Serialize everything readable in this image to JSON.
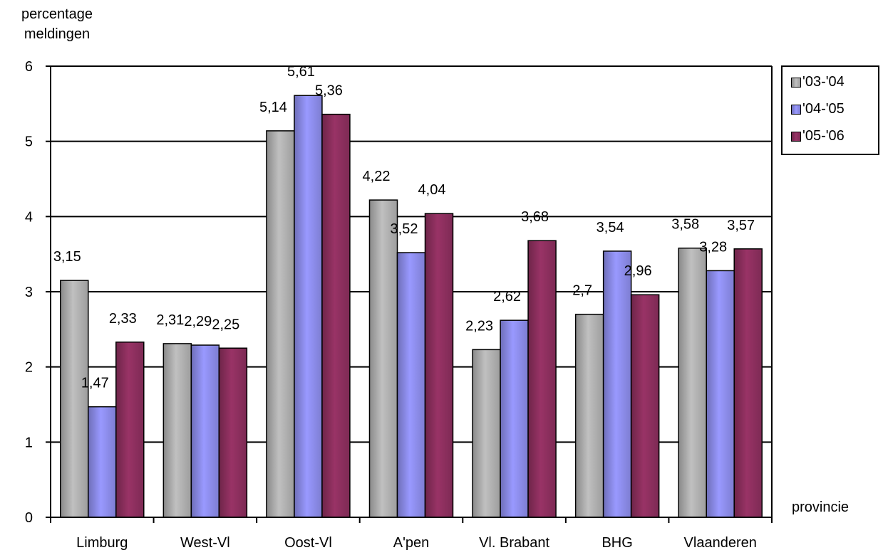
{
  "chart_data": {
    "type": "bar",
    "title": "",
    "ylabel_lines": [
      "percentage",
      "meldingen"
    ],
    "xlabel": "provincie",
    "categories": [
      "Limburg",
      "West-Vl",
      "Oost-Vl",
      "A'pen",
      "Vl. Brabant",
      "BHG",
      "Vlaanderen"
    ],
    "series": [
      {
        "name": "'03-'04",
        "color": "#c0c0c0",
        "values": [
          3.15,
          2.31,
          5.14,
          4.22,
          2.23,
          2.7,
          3.58
        ],
        "labels": [
          "3,15",
          "2,31",
          "5,14",
          "4,22",
          "2,23",
          "2,7",
          "3,58"
        ]
      },
      {
        "name": "'04-'05",
        "color": "#9999ff",
        "values": [
          1.47,
          2.29,
          5.61,
          3.52,
          2.62,
          3.54,
          3.28
        ],
        "labels": [
          "1,47",
          "2,29",
          "5,61",
          "3,52",
          "2,62",
          "3,54",
          "3,28"
        ]
      },
      {
        "name": "'05-'06",
        "color": "#993366",
        "values": [
          2.33,
          2.25,
          5.36,
          4.04,
          3.68,
          2.96,
          3.57
        ],
        "labels": [
          "2,33",
          "2,25",
          "5,36",
          "4,04",
          "3,68",
          "2,96",
          "3,57"
        ]
      }
    ],
    "ylim": [
      0,
      6
    ],
    "yticks": [
      "0",
      "1",
      "2",
      "3",
      "4",
      "5",
      "6"
    ],
    "grid": true,
    "legend_position": "top-right"
  }
}
